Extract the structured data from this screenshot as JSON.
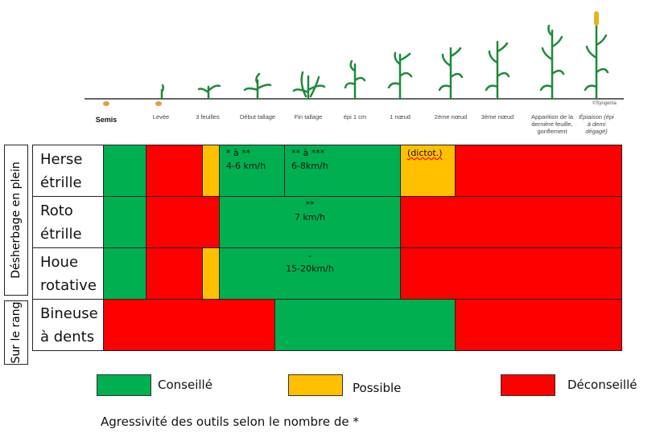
{
  "stages": [
    "Semis",
    "Levée",
    "3 feuilles",
    "Début tallage",
    "Fin tallage",
    "épi 1 cm",
    "1 nœud",
    "2ème nœud",
    "3ème nœud",
    "Apparition de la dernière feuille, gonflement",
    "Épiaison (épi à demi dégagé)"
  ],
  "copyright": "©Syngenta",
  "groups": {
    "plein": "Désherbage en plein",
    "rang": "Sur le rang"
  },
  "tools": [
    {
      "name": "Herse étrille",
      "l1": "Herse",
      "l2": "étrille"
    },
    {
      "name": "Roto étrille",
      "l1": "Roto",
      "l2": "étrille"
    },
    {
      "name": "Houe rotative",
      "l1": "Houe",
      "l2": "rotative"
    },
    {
      "name": "Bineuse à dents",
      "l1": "Bineuse",
      "l2": "à dents"
    }
  ],
  "cells": {
    "herse_a": "* à **",
    "herse_a2": "4-6 km/h",
    "herse_b": "** à ***",
    "herse_b2": "6-8km/h",
    "herse_c": "(dictot.)",
    "roto": "**",
    "roto2": "7 km/h",
    "houe": "-",
    "houe2": "15-20km/h"
  },
  "legend": {
    "green": "Conseillé",
    "orange": "Possible",
    "red": "Déconseillé"
  },
  "colors": {
    "green": "#00b050",
    "orange": "#ffc000",
    "red": "#ff0000"
  },
  "footer": "Agressivité des outils selon le nombre de *"
}
